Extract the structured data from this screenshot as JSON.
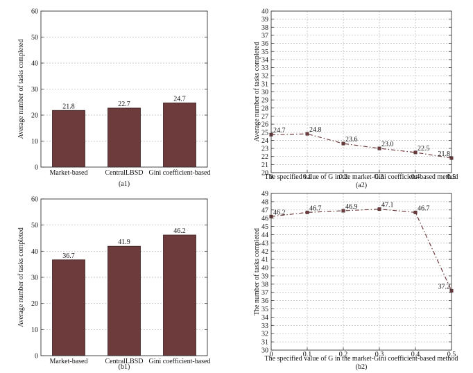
{
  "colors": {
    "bar": "#6e3b3d",
    "bar_edge": "#3a1e1f",
    "line": "#6e3b3d",
    "grid": "#b9b9b9",
    "axis": "#333333"
  },
  "chart_data": [
    {
      "id": "a1",
      "type": "bar",
      "caption": "(a1)",
      "title": "",
      "xlabel": "",
      "ylabel": "Average number of tasks completed",
      "categories": [
        "Market-based",
        "CentralLBSD",
        "Gini coefficient-based"
      ],
      "values": [
        21.8,
        22.7,
        24.7
      ],
      "value_labels": [
        "21.8",
        "22.7",
        "24.7"
      ],
      "ylim": [
        0,
        60
      ],
      "yticks": [
        0,
        10,
        20,
        30,
        40,
        50,
        60
      ],
      "grid": "horizontal"
    },
    {
      "id": "a2",
      "type": "line",
      "caption": "(a2)",
      "title": "",
      "xlabel": "The specified value of G in the market-Gini coefficient-based method",
      "ylabel": "Average number of tasks completed",
      "x": [
        0,
        0.1,
        0.2,
        0.3,
        0.4,
        0.5
      ],
      "values": [
        24.7,
        24.8,
        23.6,
        23.0,
        22.5,
        21.8
      ],
      "value_labels": [
        "24.7",
        "24.8",
        "23.6",
        "23.0",
        "22.5",
        "21.8"
      ],
      "xlim": [
        0,
        0.5
      ],
      "xticks": [
        "0",
        "0.1",
        "0.2",
        "0.3",
        "0.4",
        "0.5"
      ],
      "ylim": [
        20,
        40
      ],
      "yticks": [
        20,
        21,
        22,
        23,
        24,
        25,
        26,
        27,
        28,
        29,
        30,
        31,
        32,
        33,
        34,
        35,
        36,
        37,
        38,
        39,
        40
      ],
      "grid": "both",
      "line_style": "dash-dot"
    },
    {
      "id": "b1",
      "type": "bar",
      "caption": "(b1)",
      "title": "",
      "xlabel": "",
      "ylabel": "Average number of tasks completed",
      "categories": [
        "Market-based",
        "CentralLBSD",
        "Gini coefficient-based"
      ],
      "values": [
        36.7,
        41.9,
        46.2
      ],
      "value_labels": [
        "36.7",
        "41.9",
        "46.2"
      ],
      "ylim": [
        0,
        60
      ],
      "yticks": [
        0,
        10,
        20,
        30,
        40,
        50,
        60
      ],
      "grid": "horizontal"
    },
    {
      "id": "b2",
      "type": "line",
      "caption": "(b2)",
      "title": "",
      "xlabel": "The specified value of G in the market-Gini coefficient-based method",
      "ylabel": "The number of tasks completed",
      "x": [
        0,
        0.1,
        0.2,
        0.3,
        0.4,
        0.5
      ],
      "values": [
        46.2,
        46.7,
        46.9,
        47.1,
        46.7,
        37.2
      ],
      "value_labels": [
        "46.2",
        "46.7",
        "46.9",
        "47.1",
        "46.7",
        "37.2"
      ],
      "xlim": [
        0,
        0.5
      ],
      "xticks": [
        "0",
        "0.1",
        "0.2",
        "0.3",
        "0.4",
        "0.5"
      ],
      "ylim": [
        30,
        49
      ],
      "yticks": [
        30,
        31,
        32,
        33,
        34,
        35,
        36,
        37,
        38,
        39,
        40,
        41,
        42,
        43,
        44,
        45,
        46,
        47,
        48,
        49
      ],
      "grid": "both",
      "line_style": "dash-dot"
    }
  ]
}
